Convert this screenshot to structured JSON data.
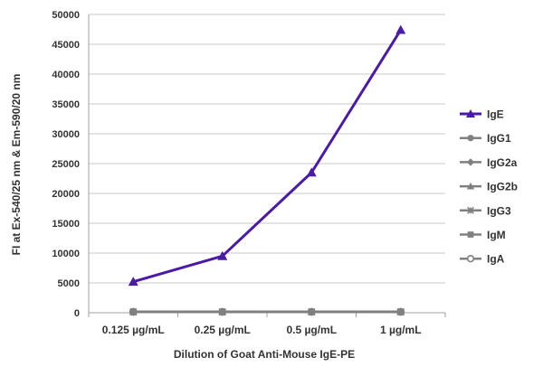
{
  "chart_data": {
    "type": "line",
    "categories": [
      "0.125 µg/mL",
      "0.25 µg/mL",
      "0.5 µg/mL",
      "1 µg/mL"
    ],
    "xlabel": "Dilution of Goat Anti-Mouse IgE-PE",
    "ylabel": "FI at Ex-540/25 nm & Em-590/20 nm",
    "ylim": [
      0,
      50000
    ],
    "yticks": [
      0,
      5000,
      10000,
      15000,
      20000,
      25000,
      30000,
      35000,
      40000,
      45000,
      50000
    ],
    "ytick_labels": [
      "0",
      "5000",
      "10000",
      "15000",
      "20000",
      "25000",
      "30000",
      "35000",
      "40000",
      "45000",
      "50000"
    ],
    "grid": "horizontal",
    "legend_position": "right",
    "series": [
      {
        "name": "IgE",
        "values": [
          5200,
          9500,
          23500,
          47400
        ],
        "color": "#4b1ba8",
        "marker": "triangle"
      },
      {
        "name": "IgG1",
        "values": [
          150,
          150,
          150,
          150
        ],
        "color": "#808080",
        "marker": "circle"
      },
      {
        "name": "IgG2a",
        "values": [
          150,
          150,
          150,
          150
        ],
        "color": "#808080",
        "marker": "diamond"
      },
      {
        "name": "IgG2b",
        "values": [
          150,
          150,
          150,
          150
        ],
        "color": "#808080",
        "marker": "triangle"
      },
      {
        "name": "IgG3",
        "values": [
          150,
          150,
          150,
          150
        ],
        "color": "#808080",
        "marker": "star"
      },
      {
        "name": "IgM",
        "values": [
          150,
          150,
          150,
          150
        ],
        "color": "#808080",
        "marker": "square"
      },
      {
        "name": "IgA",
        "values": [
          150,
          150,
          150,
          150
        ],
        "color": "#808080",
        "marker": "open-circle"
      }
    ]
  }
}
